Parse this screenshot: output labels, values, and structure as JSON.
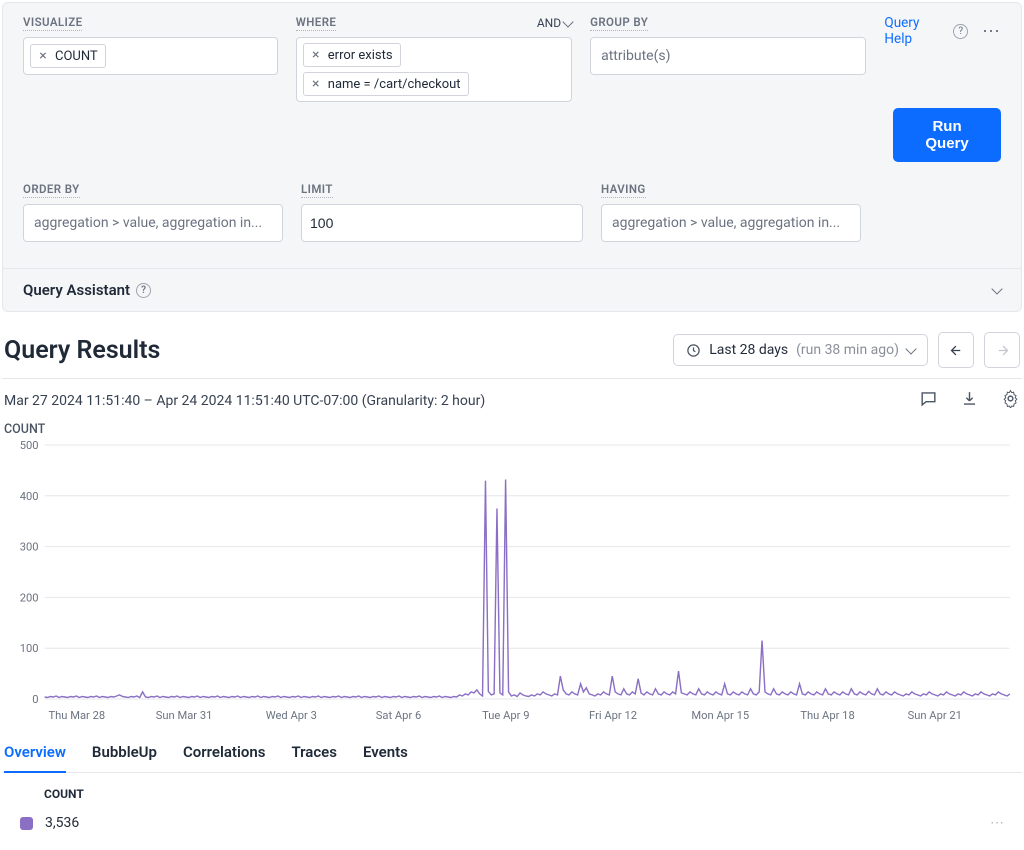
{
  "query_builder": {
    "help_link": "Query Help",
    "run_button": "Run Query",
    "and_label": "AND",
    "visualize": {
      "label": "VISUALIZE",
      "pills": [
        "COUNT"
      ]
    },
    "where": {
      "label": "WHERE",
      "pills": [
        "error exists",
        "name = /cart/checkout"
      ]
    },
    "group_by": {
      "label": "GROUP BY",
      "placeholder": "attribute(s)"
    },
    "order_by": {
      "label": "ORDER BY",
      "placeholder": "aggregation > value, aggregation in..."
    },
    "limit": {
      "label": "LIMIT",
      "value": "100"
    },
    "having": {
      "label": "HAVING",
      "placeholder": "aggregation > value, aggregation in..."
    },
    "assistant": "Query Assistant"
  },
  "results": {
    "title": "Query Results",
    "time_range": "Last 28 days",
    "time_ago": "(run 38 min ago)",
    "time_detail": "Mar 27 2024 11:51:40 – Apr 24 2024 11:51:40 UTC-07:00 (Granularity: 2 hour)"
  },
  "chart": {
    "series_label": "COUNT",
    "type": "line",
    "line_color": "#8b6fc4",
    "line_width": 1.4,
    "background_color": "#ffffff",
    "grid_color": "#e5e7eb",
    "ylim": [
      0,
      500
    ],
    "ytick_step": 100,
    "y_ticks": [
      "0",
      "100",
      "200",
      "300",
      "400",
      "500"
    ],
    "x_ticks": [
      "Thu Mar 28",
      "Sun Mar 31",
      "Wed Apr 3",
      "Sat Apr 6",
      "Tue Apr 9",
      "Fri Apr 12",
      "Mon Apr 15",
      "Thu Apr 18",
      "Sun Apr 21"
    ],
    "n_points": 336,
    "values": [
      4,
      3,
      5,
      4,
      6,
      3,
      5,
      4,
      3,
      5,
      4,
      6,
      3,
      5,
      4,
      3,
      5,
      4,
      6,
      3,
      5,
      4,
      3,
      5,
      4,
      6,
      8,
      5,
      4,
      3,
      5,
      4,
      6,
      3,
      14,
      4,
      3,
      5,
      4,
      6,
      3,
      5,
      4,
      3,
      5,
      4,
      6,
      3,
      5,
      4,
      3,
      5,
      4,
      6,
      3,
      5,
      4,
      3,
      5,
      4,
      6,
      3,
      5,
      4,
      3,
      5,
      4,
      6,
      3,
      5,
      4,
      3,
      5,
      4,
      6,
      3,
      5,
      4,
      3,
      5,
      4,
      6,
      3,
      5,
      4,
      3,
      5,
      4,
      6,
      3,
      5,
      4,
      3,
      5,
      4,
      6,
      3,
      5,
      4,
      3,
      5,
      4,
      6,
      3,
      5,
      4,
      3,
      5,
      4,
      6,
      3,
      5,
      4,
      3,
      5,
      4,
      6,
      3,
      5,
      4,
      3,
      5,
      4,
      6,
      3,
      5,
      4,
      3,
      5,
      4,
      6,
      3,
      5,
      4,
      3,
      5,
      4,
      6,
      3,
      5,
      4,
      3,
      5,
      4,
      8,
      6,
      10,
      8,
      14,
      12,
      18,
      10,
      6,
      430,
      15,
      8,
      10,
      375,
      12,
      8,
      432,
      14,
      6,
      8,
      5,
      12,
      8,
      6,
      5,
      8,
      6,
      10,
      8,
      14,
      10,
      8,
      6,
      10,
      8,
      45,
      18,
      10,
      8,
      14,
      10,
      8,
      30,
      14,
      22,
      10,
      8,
      6,
      10,
      8,
      14,
      10,
      8,
      45,
      14,
      10,
      8,
      20,
      10,
      8,
      14,
      10,
      40,
      12,
      8,
      14,
      10,
      8,
      20,
      10,
      8,
      14,
      10,
      8,
      14,
      10,
      55,
      12,
      10,
      8,
      14,
      10,
      8,
      20,
      10,
      8,
      14,
      10,
      8,
      14,
      10,
      8,
      30,
      10,
      8,
      14,
      10,
      8,
      14,
      10,
      8,
      20,
      10,
      8,
      14,
      115,
      14,
      10,
      8,
      20,
      10,
      8,
      14,
      10,
      8,
      14,
      10,
      8,
      30,
      10,
      8,
      14,
      10,
      8,
      14,
      10,
      8,
      20,
      10,
      8,
      14,
      10,
      8,
      14,
      10,
      8,
      20,
      10,
      8,
      14,
      10,
      8,
      15,
      10,
      8,
      20,
      10,
      8,
      14,
      10,
      8,
      14,
      10,
      8,
      6,
      10,
      8,
      14,
      10,
      8,
      6,
      10,
      8,
      14,
      10,
      8,
      6,
      10,
      8,
      14,
      10,
      8,
      6,
      10,
      8,
      14,
      10,
      8,
      6,
      10,
      8,
      14,
      10,
      8,
      6,
      10,
      8,
      14,
      10,
      8,
      6,
      10
    ]
  },
  "tabs": {
    "items": [
      "Overview",
      "BubbleUp",
      "Correlations",
      "Traces",
      "Events"
    ],
    "active": "Overview"
  },
  "table": {
    "header": "COUNT",
    "swatch_color": "#8b6fc4",
    "value": "3,536"
  }
}
